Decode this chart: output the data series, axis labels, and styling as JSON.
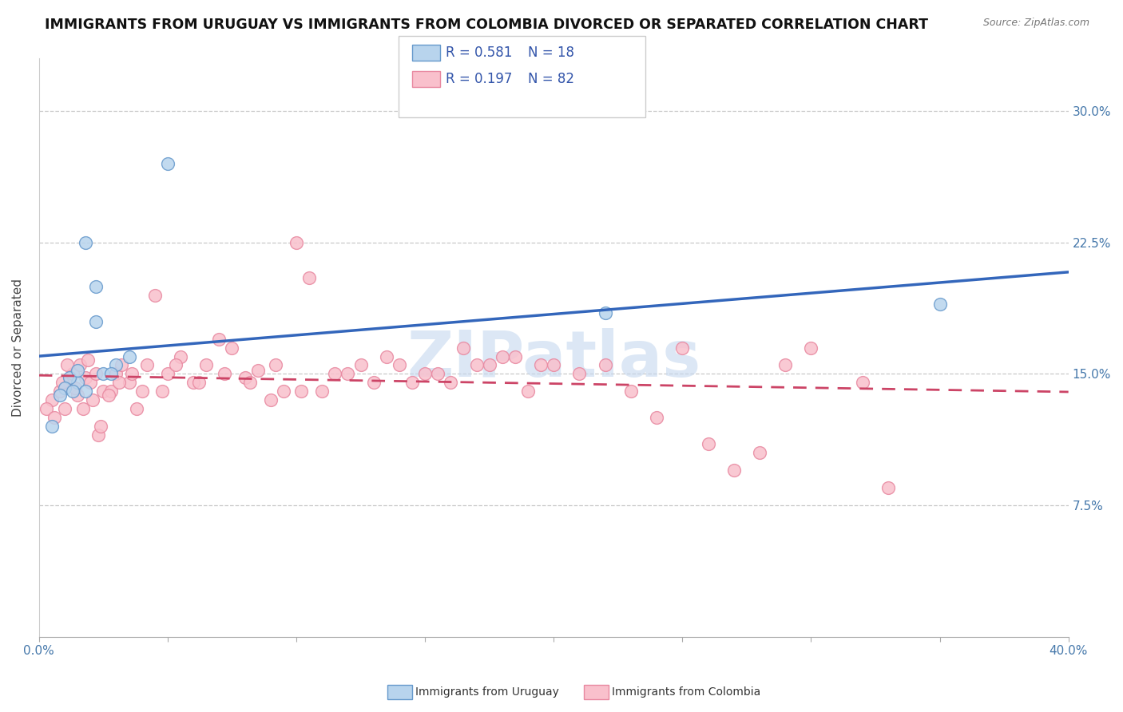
{
  "title": "IMMIGRANTS FROM URUGUAY VS IMMIGRANTS FROM COLOMBIA DIVORCED OR SEPARATED CORRELATION CHART",
  "source": "Source: ZipAtlas.com",
  "ylabel": "Divorced or Separated",
  "xlim": [
    0.0,
    40.0
  ],
  "ylim": [
    0.0,
    33.0
  ],
  "yticks": [
    0.0,
    7.5,
    15.0,
    22.5,
    30.0
  ],
  "ytick_labels": [
    "",
    "7.5%",
    "15.0%",
    "22.5%",
    "30.0%"
  ],
  "legend_blue_r": "R = 0.581",
  "legend_blue_n": "N = 18",
  "legend_pink_r": "R = 0.197",
  "legend_pink_n": "N = 82",
  "blue_fill_color": "#b8d4ed",
  "pink_fill_color": "#f9c0cc",
  "blue_edge_color": "#6699cc",
  "pink_edge_color": "#e888a0",
  "blue_line_color": "#3366bb",
  "pink_line_color": "#cc4466",
  "legend_r_n_color": "#3355aa",
  "watermark_color": "#c5d8ef",
  "blue_scatter_x": [
    1.5,
    2.2,
    1.8,
    2.5,
    3.0,
    1.2,
    1.0,
    0.8,
    1.3,
    1.5,
    1.8,
    2.2,
    2.8,
    3.5,
    5.0,
    22.0,
    35.0,
    0.5
  ],
  "blue_scatter_y": [
    14.5,
    20.0,
    14.0,
    15.0,
    15.5,
    14.8,
    14.2,
    13.8,
    14.0,
    15.2,
    22.5,
    18.0,
    15.0,
    16.0,
    27.0,
    18.5,
    19.0,
    12.0
  ],
  "pink_scatter_x": [
    0.5,
    0.8,
    1.0,
    1.2,
    1.3,
    1.5,
    1.6,
    1.7,
    1.8,
    2.0,
    2.2,
    2.3,
    2.5,
    2.8,
    3.0,
    3.2,
    3.5,
    3.8,
    4.0,
    4.5,
    5.0,
    5.5,
    6.0,
    6.5,
    7.0,
    7.5,
    8.0,
    8.5,
    9.0,
    9.5,
    10.0,
    10.5,
    11.0,
    12.0,
    13.0,
    14.0,
    15.0,
    16.0,
    17.0,
    18.0,
    19.0,
    20.0,
    22.0,
    24.0,
    25.0,
    27.0,
    29.0,
    30.0,
    32.0,
    33.0,
    0.3,
    0.6,
    0.9,
    1.1,
    1.4,
    1.9,
    2.1,
    2.4,
    2.7,
    3.1,
    3.6,
    4.2,
    4.8,
    5.3,
    6.2,
    7.2,
    8.2,
    9.2,
    10.2,
    11.5,
    12.5,
    13.5,
    14.5,
    15.5,
    16.5,
    17.5,
    18.5,
    19.5,
    21.0,
    23.0,
    26.0,
    28.0
  ],
  "pink_scatter_y": [
    13.5,
    14.0,
    13.0,
    14.5,
    15.0,
    13.8,
    15.5,
    13.0,
    14.8,
    14.5,
    15.0,
    11.5,
    14.0,
    14.0,
    15.0,
    15.5,
    14.5,
    13.0,
    14.0,
    19.5,
    15.0,
    16.0,
    14.5,
    15.5,
    17.0,
    16.5,
    14.8,
    15.2,
    13.5,
    14.0,
    22.5,
    20.5,
    14.0,
    15.0,
    14.5,
    15.5,
    15.0,
    14.5,
    15.5,
    16.0,
    14.0,
    15.5,
    15.5,
    12.5,
    16.5,
    9.5,
    15.5,
    16.5,
    14.5,
    8.5,
    13.0,
    12.5,
    14.5,
    15.5,
    14.2,
    15.8,
    13.5,
    12.0,
    13.8,
    14.5,
    15.0,
    15.5,
    14.0,
    15.5,
    14.5,
    15.0,
    14.5,
    15.5,
    14.0,
    15.0,
    15.5,
    16.0,
    14.5,
    15.0,
    16.5,
    15.5,
    16.0,
    15.5,
    15.0,
    14.0,
    11.0,
    10.5
  ]
}
